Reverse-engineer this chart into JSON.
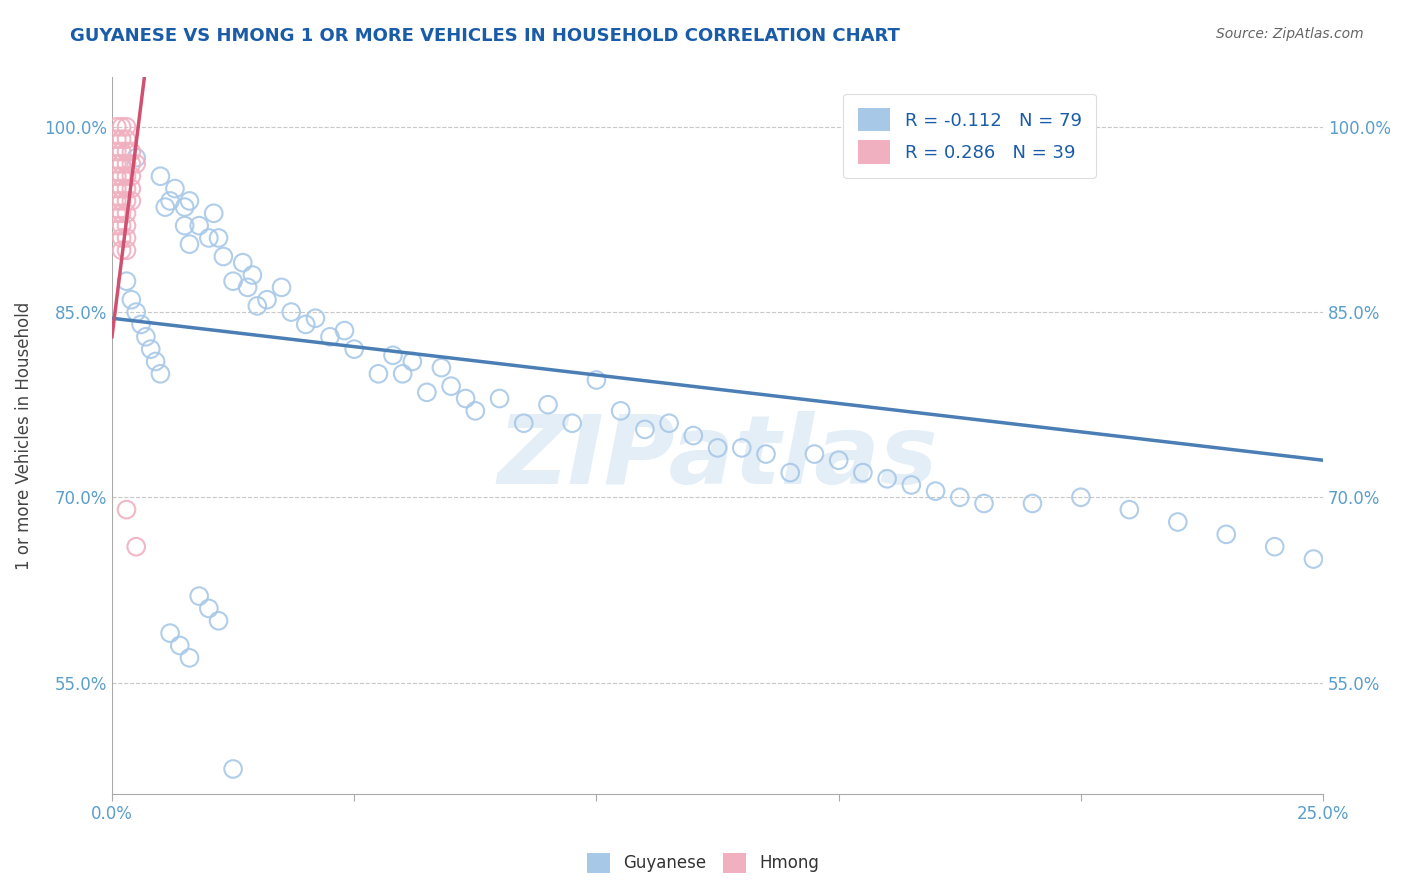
{
  "title": "GUYANESE VS HMONG 1 OR MORE VEHICLES IN HOUSEHOLD CORRELATION CHART",
  "source": "Source: ZipAtlas.com",
  "ylabel": "1 or more Vehicles in Household",
  "xlabel": "",
  "xlim": [
    0.0,
    0.25
  ],
  "ylim": [
    0.46,
    1.04
  ],
  "x_ticks": [
    0.0,
    0.05,
    0.1,
    0.15,
    0.2,
    0.25
  ],
  "x_tick_labels": [
    "0.0%",
    "",
    "",
    "",
    "",
    "25.0%"
  ],
  "y_ticks": [
    0.55,
    0.7,
    0.85,
    1.0
  ],
  "y_tick_labels": [
    "55.0%",
    "70.0%",
    "85.0%",
    "100.0%"
  ],
  "background_color": "#ffffff",
  "grid_color": "#c8c8c8",
  "watermark_text": "ZIPatlas",
  "blue_color": "#a8c8e8",
  "pink_color": "#f0b0c0",
  "blue_line_color": "#4a7eb5",
  "pink_line_color": "#d05070",
  "R_blue": -0.112,
  "N_blue": 79,
  "R_pink": 0.286,
  "N_pink": 39,
  "legend_label_blue": "Guyanese",
  "legend_label_pink": "Hmong",
  "blue_line_x0": 0.0,
  "blue_line_y0": 0.845,
  "blue_line_x1": 0.25,
  "blue_line_y1": 0.73,
  "pink_line_x0": 0.0,
  "pink_line_y0": 0.83,
  "pink_line_x1": 0.007,
  "pink_line_y1": 1.05,
  "guyanese_x": [
    0.005,
    0.01,
    0.011,
    0.012,
    0.013,
    0.015,
    0.015,
    0.016,
    0.016,
    0.018,
    0.02,
    0.021,
    0.022,
    0.023,
    0.025,
    0.027,
    0.028,
    0.029,
    0.03,
    0.032,
    0.035,
    0.037,
    0.04,
    0.042,
    0.045,
    0.048,
    0.05,
    0.055,
    0.058,
    0.06,
    0.062,
    0.065,
    0.068,
    0.07,
    0.073,
    0.075,
    0.08,
    0.085,
    0.09,
    0.095,
    0.1,
    0.105,
    0.11,
    0.115,
    0.12,
    0.125,
    0.13,
    0.135,
    0.14,
    0.145,
    0.15,
    0.155,
    0.16,
    0.165,
    0.17,
    0.175,
    0.18,
    0.19,
    0.2,
    0.21,
    0.22,
    0.23,
    0.24,
    0.248,
    0.003,
    0.004,
    0.005,
    0.006,
    0.007,
    0.008,
    0.009,
    0.01,
    0.012,
    0.014,
    0.016,
    0.018,
    0.02,
    0.022,
    0.025
  ],
  "guyanese_y": [
    0.975,
    0.96,
    0.935,
    0.94,
    0.95,
    0.935,
    0.92,
    0.94,
    0.905,
    0.92,
    0.91,
    0.93,
    0.91,
    0.895,
    0.875,
    0.89,
    0.87,
    0.88,
    0.855,
    0.86,
    0.87,
    0.85,
    0.84,
    0.845,
    0.83,
    0.835,
    0.82,
    0.8,
    0.815,
    0.8,
    0.81,
    0.785,
    0.805,
    0.79,
    0.78,
    0.77,
    0.78,
    0.76,
    0.775,
    0.76,
    0.795,
    0.77,
    0.755,
    0.76,
    0.75,
    0.74,
    0.74,
    0.735,
    0.72,
    0.735,
    0.73,
    0.72,
    0.715,
    0.71,
    0.705,
    0.7,
    0.695,
    0.695,
    0.7,
    0.69,
    0.68,
    0.67,
    0.66,
    0.65,
    0.875,
    0.86,
    0.85,
    0.84,
    0.83,
    0.82,
    0.81,
    0.8,
    0.59,
    0.58,
    0.57,
    0.62,
    0.61,
    0.6,
    0.48
  ],
  "hmong_x": [
    0.001,
    0.001,
    0.001,
    0.001,
    0.001,
    0.001,
    0.001,
    0.001,
    0.001,
    0.002,
    0.002,
    0.002,
    0.002,
    0.002,
    0.002,
    0.002,
    0.002,
    0.002,
    0.002,
    0.002,
    0.003,
    0.003,
    0.003,
    0.003,
    0.003,
    0.003,
    0.003,
    0.003,
    0.003,
    0.003,
    0.003,
    0.003,
    0.004,
    0.004,
    0.004,
    0.004,
    0.004,
    0.005,
    0.005
  ],
  "hmong_y": [
    1.0,
    0.99,
    0.98,
    0.97,
    0.96,
    0.95,
    0.94,
    0.93,
    0.92,
    1.0,
    0.99,
    0.98,
    0.97,
    0.96,
    0.95,
    0.94,
    0.93,
    0.92,
    0.91,
    0.9,
    1.0,
    0.99,
    0.98,
    0.97,
    0.96,
    0.95,
    0.94,
    0.93,
    0.92,
    0.91,
    0.9,
    0.69,
    0.98,
    0.97,
    0.96,
    0.95,
    0.94,
    0.97,
    0.66
  ]
}
